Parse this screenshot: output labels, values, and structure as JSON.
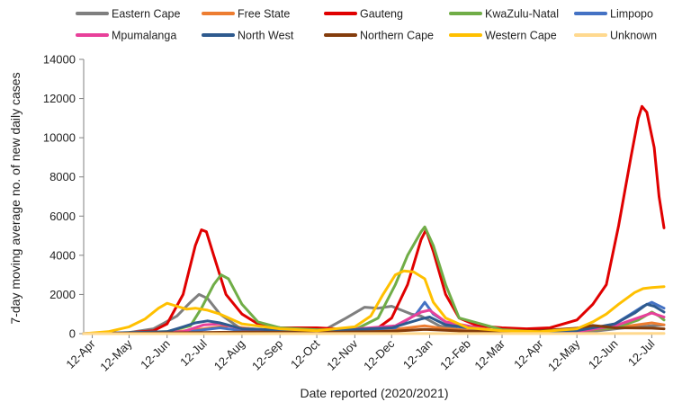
{
  "chart_data": {
    "type": "line",
    "title": "",
    "xlabel": "Date reported (2020/2021)",
    "ylabel": "7-day moving average no. of new daily cases",
    "ylim": [
      0,
      14000
    ],
    "yticks": [
      0,
      2000,
      4000,
      6000,
      8000,
      10000,
      12000,
      14000
    ],
    "x_start": "2020-04-05",
    "x_end": "2021-07-22",
    "xticks": [
      {
        "date": "2020-04-12",
        "label": "12-Apr"
      },
      {
        "date": "2020-05-12",
        "label": "12-May"
      },
      {
        "date": "2020-06-12",
        "label": "12-Jun"
      },
      {
        "date": "2020-07-12",
        "label": "12-Jul"
      },
      {
        "date": "2020-08-12",
        "label": "12-Aug"
      },
      {
        "date": "2020-09-12",
        "label": "12-Sep"
      },
      {
        "date": "2020-10-12",
        "label": "12-Oct"
      },
      {
        "date": "2020-11-12",
        "label": "12-Nov"
      },
      {
        "date": "2020-12-12",
        "label": "12-Dec"
      },
      {
        "date": "2021-01-12",
        "label": "12-Jan"
      },
      {
        "date": "2021-02-12",
        "label": "12-Feb"
      },
      {
        "date": "2021-03-12",
        "label": "12-Mar"
      },
      {
        "date": "2021-04-12",
        "label": "12-Apr"
      },
      {
        "date": "2021-05-12",
        "label": "12-May"
      },
      {
        "date": "2021-06-12",
        "label": "12-Jun"
      },
      {
        "date": "2021-07-12",
        "label": "12-Jul"
      }
    ],
    "grid": false,
    "legend_position": "top",
    "series": [
      {
        "name": "Eastern Cape",
        "color": "#7f7f7f",
        "points": [
          [
            "2020-04-05",
            0
          ],
          [
            "2020-05-12",
            60
          ],
          [
            "2020-06-01",
            250
          ],
          [
            "2020-06-20",
            900
          ],
          [
            "2020-07-01",
            1600
          ],
          [
            "2020-07-08",
            2000
          ],
          [
            "2020-07-15",
            1800
          ],
          [
            "2020-07-25",
            1000
          ],
          [
            "2020-08-10",
            300
          ],
          [
            "2020-09-10",
            150
          ],
          [
            "2020-10-20",
            250
          ],
          [
            "2020-11-05",
            800
          ],
          [
            "2020-11-20",
            1350
          ],
          [
            "2020-12-01",
            1300
          ],
          [
            "2020-12-12",
            1400
          ],
          [
            "2020-12-20",
            1200
          ],
          [
            "2020-12-28",
            1000
          ],
          [
            "2021-01-05",
            900
          ],
          [
            "2021-01-20",
            400
          ],
          [
            "2021-02-12",
            120
          ],
          [
            "2021-04-12",
            50
          ],
          [
            "2021-05-20",
            80
          ],
          [
            "2021-06-20",
            300
          ],
          [
            "2021-07-22",
            450
          ]
        ]
      },
      {
        "name": "Free State",
        "color": "#ed7d31",
        "points": [
          [
            "2020-04-05",
            0
          ],
          [
            "2020-06-12",
            50
          ],
          [
            "2020-07-12",
            250
          ],
          [
            "2020-08-01",
            400
          ],
          [
            "2020-08-25",
            200
          ],
          [
            "2020-10-12",
            80
          ],
          [
            "2020-12-12",
            200
          ],
          [
            "2021-01-08",
            400
          ],
          [
            "2021-01-25",
            250
          ],
          [
            "2021-03-12",
            80
          ],
          [
            "2021-05-12",
            120
          ],
          [
            "2021-06-12",
            300
          ],
          [
            "2021-07-12",
            550
          ],
          [
            "2021-07-22",
            450
          ]
        ]
      },
      {
        "name": "Gauteng",
        "color": "#e00000",
        "points": [
          [
            "2020-04-05",
            0
          ],
          [
            "2020-05-12",
            50
          ],
          [
            "2020-06-01",
            150
          ],
          [
            "2020-06-12",
            500
          ],
          [
            "2020-06-25",
            2000
          ],
          [
            "2020-07-05",
            4500
          ],
          [
            "2020-07-10",
            5300
          ],
          [
            "2020-07-14",
            5200
          ],
          [
            "2020-07-20",
            4000
          ],
          [
            "2020-07-30",
            2000
          ],
          [
            "2020-08-12",
            1000
          ],
          [
            "2020-08-25",
            500
          ],
          [
            "2020-09-12",
            300
          ],
          [
            "2020-10-12",
            300
          ],
          [
            "2020-11-12",
            200
          ],
          [
            "2020-12-01",
            300
          ],
          [
            "2020-12-12",
            800
          ],
          [
            "2020-12-25",
            2500
          ],
          [
            "2021-01-05",
            4800
          ],
          [
            "2021-01-09",
            5300
          ],
          [
            "2021-01-15",
            4200
          ],
          [
            "2021-01-25",
            2000
          ],
          [
            "2021-02-05",
            800
          ],
          [
            "2021-02-20",
            400
          ],
          [
            "2021-03-12",
            300
          ],
          [
            "2021-04-01",
            250
          ],
          [
            "2021-04-20",
            300
          ],
          [
            "2021-05-12",
            700
          ],
          [
            "2021-05-25",
            1500
          ],
          [
            "2021-06-05",
            2500
          ],
          [
            "2021-06-15",
            5500
          ],
          [
            "2021-06-25",
            9000
          ],
          [
            "2021-07-01",
            11000
          ],
          [
            "2021-07-04",
            11600
          ],
          [
            "2021-07-08",
            11300
          ],
          [
            "2021-07-14",
            9500
          ],
          [
            "2021-07-18",
            7000
          ],
          [
            "2021-07-22",
            5400
          ]
        ]
      },
      {
        "name": "KwaZulu-Natal",
        "color": "#70ad47",
        "points": [
          [
            "2020-04-05",
            0
          ],
          [
            "2020-06-12",
            100
          ],
          [
            "2020-07-01",
            400
          ],
          [
            "2020-07-10",
            1300
          ],
          [
            "2020-07-20",
            2500
          ],
          [
            "2020-07-26",
            3000
          ],
          [
            "2020-08-01",
            2800
          ],
          [
            "2020-08-12",
            1500
          ],
          [
            "2020-08-25",
            600
          ],
          [
            "2020-09-12",
            300
          ],
          [
            "2020-10-12",
            200
          ],
          [
            "2020-11-12",
            200
          ],
          [
            "2020-12-01",
            800
          ],
          [
            "2020-12-15",
            2500
          ],
          [
            "2020-12-25",
            4000
          ],
          [
            "2021-01-05",
            5200
          ],
          [
            "2021-01-08",
            5450
          ],
          [
            "2021-01-15",
            4500
          ],
          [
            "2021-01-25",
            2500
          ],
          [
            "2021-02-05",
            800
          ],
          [
            "2021-03-12",
            200
          ],
          [
            "2021-04-12",
            100
          ],
          [
            "2021-05-12",
            150
          ],
          [
            "2021-06-12",
            300
          ],
          [
            "2021-07-01",
            700
          ],
          [
            "2021-07-12",
            1100
          ],
          [
            "2021-07-18",
            900
          ],
          [
            "2021-07-22",
            700
          ]
        ]
      },
      {
        "name": "Limpopo",
        "color": "#4472c4",
        "points": [
          [
            "2020-04-05",
            0
          ],
          [
            "2020-06-25",
            50
          ],
          [
            "2020-07-12",
            200
          ],
          [
            "2020-07-25",
            300
          ],
          [
            "2020-08-12",
            150
          ],
          [
            "2020-10-12",
            50
          ],
          [
            "2020-12-15",
            300
          ],
          [
            "2021-01-01",
            1000
          ],
          [
            "2021-01-08",
            1600
          ],
          [
            "2021-01-15",
            1000
          ],
          [
            "2021-01-30",
            400
          ],
          [
            "2021-03-12",
            60
          ],
          [
            "2021-05-12",
            80
          ],
          [
            "2021-06-12",
            500
          ],
          [
            "2021-06-25",
            1000
          ],
          [
            "2021-07-05",
            1400
          ],
          [
            "2021-07-12",
            1600
          ],
          [
            "2021-07-22",
            1300
          ]
        ]
      },
      {
        "name": "Mpumalanga",
        "color": "#e8409a",
        "points": [
          [
            "2020-04-05",
            0
          ],
          [
            "2020-06-25",
            100
          ],
          [
            "2020-07-12",
            450
          ],
          [
            "2020-07-25",
            500
          ],
          [
            "2020-08-12",
            250
          ],
          [
            "2020-10-12",
            80
          ],
          [
            "2020-12-15",
            400
          ],
          [
            "2021-01-05",
            1100
          ],
          [
            "2021-01-12",
            1200
          ],
          [
            "2021-01-25",
            600
          ],
          [
            "2021-03-12",
            80
          ],
          [
            "2021-05-12",
            100
          ],
          [
            "2021-06-12",
            400
          ],
          [
            "2021-07-05",
            900
          ],
          [
            "2021-07-12",
            1050
          ],
          [
            "2021-07-22",
            850
          ]
        ]
      },
      {
        "name": "North West",
        "color": "#2e5a8e",
        "points": [
          [
            "2020-04-05",
            0
          ],
          [
            "2020-06-12",
            100
          ],
          [
            "2020-06-25",
            350
          ],
          [
            "2020-07-05",
            550
          ],
          [
            "2020-07-15",
            650
          ],
          [
            "2020-07-25",
            550
          ],
          [
            "2020-08-12",
            250
          ],
          [
            "2020-10-12",
            120
          ],
          [
            "2020-12-12",
            300
          ],
          [
            "2021-01-05",
            750
          ],
          [
            "2021-01-12",
            850
          ],
          [
            "2021-01-25",
            450
          ],
          [
            "2021-03-12",
            100
          ],
          [
            "2021-05-12",
            150
          ],
          [
            "2021-06-12",
            500
          ],
          [
            "2021-06-28",
            1050
          ],
          [
            "2021-07-08",
            1500
          ],
          [
            "2021-07-14",
            1400
          ],
          [
            "2021-07-22",
            1100
          ]
        ]
      },
      {
        "name": "Northern Cape",
        "color": "#843c0c",
        "points": [
          [
            "2020-04-05",
            0
          ],
          [
            "2020-07-12",
            60
          ],
          [
            "2020-08-12",
            80
          ],
          [
            "2020-10-12",
            60
          ],
          [
            "2020-12-12",
            120
          ],
          [
            "2021-01-08",
            220
          ],
          [
            "2021-02-12",
            120
          ],
          [
            "2021-04-12",
            150
          ],
          [
            "2021-05-12",
            280
          ],
          [
            "2021-05-25",
            420
          ],
          [
            "2021-06-12",
            300
          ],
          [
            "2021-07-12",
            280
          ],
          [
            "2021-07-22",
            250
          ]
        ]
      },
      {
        "name": "Western Cape",
        "color": "#ffc000",
        "points": [
          [
            "2020-04-05",
            0
          ],
          [
            "2020-04-25",
            100
          ],
          [
            "2020-05-12",
            350
          ],
          [
            "2020-05-25",
            750
          ],
          [
            "2020-06-05",
            1300
          ],
          [
            "2020-06-12",
            1550
          ],
          [
            "2020-06-20",
            1400
          ],
          [
            "2020-06-28",
            1250
          ],
          [
            "2020-07-05",
            1300
          ],
          [
            "2020-07-15",
            1200
          ],
          [
            "2020-07-25",
            1000
          ],
          [
            "2020-08-12",
            500
          ],
          [
            "2020-09-12",
            250
          ],
          [
            "2020-10-12",
            150
          ],
          [
            "2020-11-12",
            350
          ],
          [
            "2020-11-25",
            900
          ],
          [
            "2020-12-05",
            2000
          ],
          [
            "2020-12-15",
            3000
          ],
          [
            "2020-12-22",
            3200
          ],
          [
            "2020-12-30",
            3150
          ],
          [
            "2021-01-08",
            2800
          ],
          [
            "2021-01-15",
            1600
          ],
          [
            "2021-01-25",
            800
          ],
          [
            "2021-02-12",
            300
          ],
          [
            "2021-03-12",
            150
          ],
          [
            "2021-04-12",
            100
          ],
          [
            "2021-05-12",
            250
          ],
          [
            "2021-05-25",
            600
          ],
          [
            "2021-06-05",
            1000
          ],
          [
            "2021-06-15",
            1500
          ],
          [
            "2021-06-28",
            2100
          ],
          [
            "2021-07-05",
            2300
          ],
          [
            "2021-07-12",
            2350
          ],
          [
            "2021-07-22",
            2400
          ]
        ]
      },
      {
        "name": "Unknown",
        "color": "#ffd98f",
        "points": [
          [
            "2020-04-05",
            0
          ],
          [
            "2021-07-22",
            10
          ]
        ]
      }
    ]
  }
}
